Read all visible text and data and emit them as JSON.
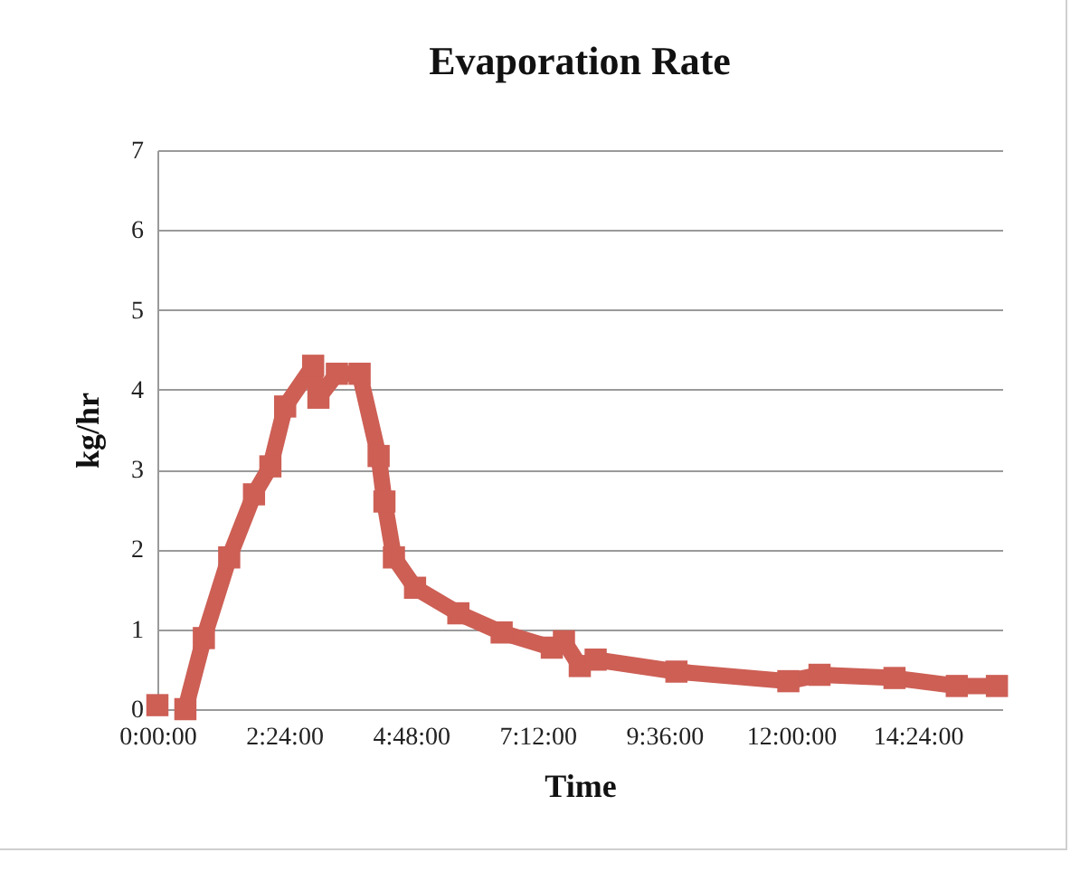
{
  "chart_data": {
    "type": "line",
    "title": "Evaporation Rate",
    "xlabel": "Time",
    "ylabel": "kg/hr",
    "xlim": [
      0,
      16
    ],
    "ylim": [
      0,
      7
    ],
    "xticks": [
      {
        "value": 0,
        "label": "0:00:00"
      },
      {
        "value": 2.4,
        "label": "2:24:00"
      },
      {
        "value": 4.8,
        "label": "4:48:00"
      },
      {
        "value": 7.2,
        "label": "7:12:00"
      },
      {
        "value": 9.6,
        "label": "9:36:00"
      },
      {
        "value": 12,
        "label": "12:00:00"
      },
      {
        "value": 14.4,
        "label": "14:24:00"
      }
    ],
    "yticks": [
      0,
      1,
      2,
      3,
      4,
      5,
      6,
      7
    ],
    "grid": "y",
    "marker": "square",
    "line_style": "solid",
    "series": [
      {
        "color": "#cd5f55",
        "x": [
          0,
          0.25,
          0.53,
          0.88,
          1.36,
          1.83,
          2.14,
          2.42,
          2.95,
          3.05,
          3.4,
          3.83,
          4.19,
          4.3,
          4.48,
          4.88,
          5.7,
          6.52,
          7.47,
          7.7,
          8.0,
          8.3,
          9.83,
          11.95,
          12.54,
          13.96,
          15.14,
          15.9
        ],
        "values": [
          0.05,
          null,
          0,
          0.89,
          1.9,
          2.69,
          3.04,
          3.79,
          4.3,
          3.9,
          4.2,
          4.2,
          3.17,
          2.6,
          1.9,
          1.52,
          1.2,
          0.96,
          0.77,
          0.85,
          0.54,
          0.62,
          0.47,
          0.35,
          0.43,
          0.39,
          0.29,
          0.29
        ]
      }
    ]
  }
}
